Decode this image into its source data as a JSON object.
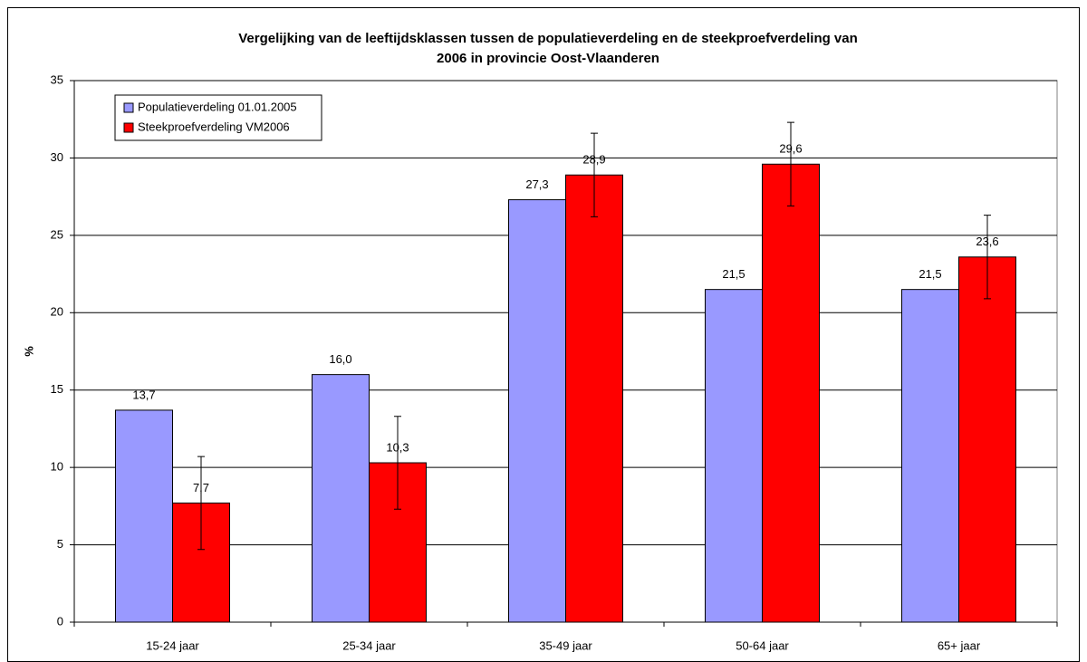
{
  "chart_data": {
    "type": "bar",
    "title": [
      "Vergelijking van de leeftijdsklassen tussen de populatieverdeling en de steekproefverdeling van",
      "2006 in provincie Oost-Vlaanderen"
    ],
    "y_label": "%",
    "categories": [
      "15-24 jaar",
      "25-34 jaar",
      "35-49 jaar",
      "50-64 jaar",
      "65+ jaar"
    ],
    "series": [
      {
        "name": "Populatieverdeling 01.01.2005",
        "color": "#9999ff",
        "values": [
          13.7,
          16.0,
          27.3,
          21.5,
          21.5
        ],
        "value_labels": [
          "13,7",
          "16,0",
          "27,3",
          "21,5",
          "21,5"
        ]
      },
      {
        "name": "Steekproefverdeling VM2006",
        "color": "#ff0000",
        "values": [
          7.7,
          10.3,
          28.9,
          29.6,
          23.6
        ],
        "value_labels": [
          "7,7",
          "10,3",
          "28,9",
          "29,6",
          "23,6"
        ],
        "errors": [
          3.0,
          3.0,
          2.7,
          2.7,
          2.7
        ]
      }
    ],
    "ylim": [
      0,
      35
    ],
    "yticks": [
      0,
      5,
      10,
      15,
      20,
      25,
      30,
      35
    ],
    "grid": true,
    "legend": "upper left"
  }
}
